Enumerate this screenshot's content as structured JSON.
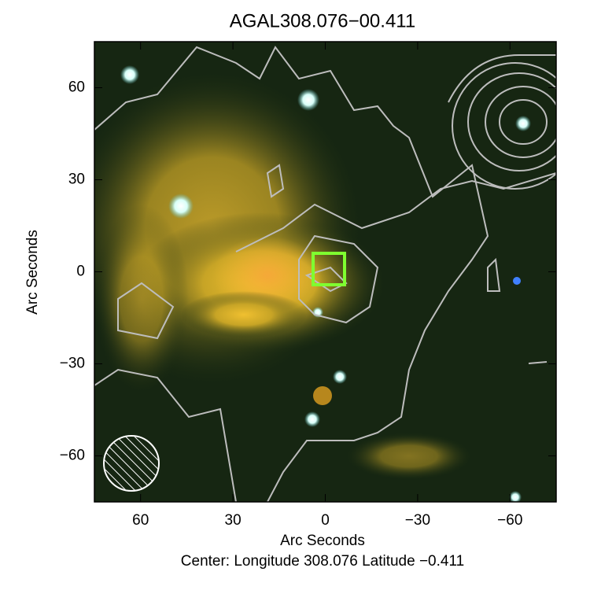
{
  "chart_data": {
    "type": "image",
    "title": "AGAL308.076−00.411",
    "xlabel": "Arc Seconds",
    "ylabel": "Arc Seconds",
    "footer": "Center:  Longitude 308.076 Latitude −0.411",
    "xlim": [
      75,
      -75
    ],
    "ylim": [
      -75,
      75
    ],
    "xticks": [
      60,
      30,
      0,
      {
        "value": -30,
        "label": "−30"
      },
      {
        "value": -60,
        "label": "−60"
      }
    ],
    "yticks": [
      {
        "value": -60,
        "label": "−60"
      },
      {
        "value": -30,
        "label": "−30"
      },
      0,
      30,
      60
    ]
  }
}
